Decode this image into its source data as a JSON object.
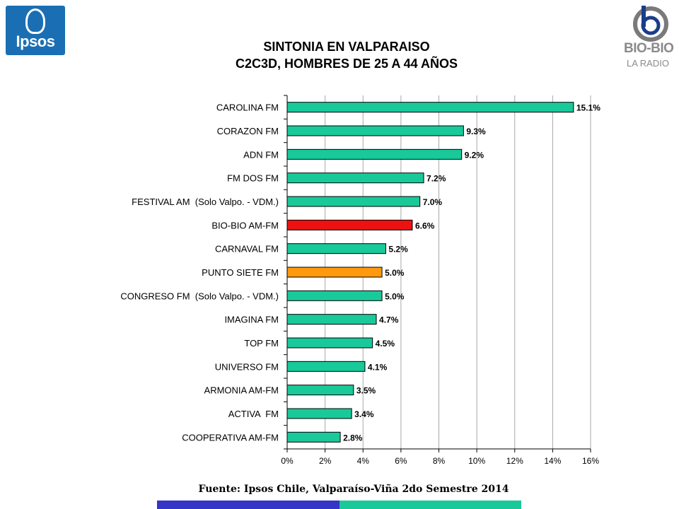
{
  "logos": {
    "left": {
      "name": "Ipsos",
      "color": "#1a6fb4"
    },
    "right": {
      "name": "BIO-BIO",
      "tagline": "LA RADIO",
      "color": "#8a8a8a"
    }
  },
  "title_line1": "SINTONIA EN VALPARAISO",
  "title_line2": "C2C3D, HOMBRES DE 25 A 44 AÑOS",
  "source": "Fuente: Ipsos Chile, Valparaíso-Viña 2do Semestre 2014",
  "footer_band_colors": [
    "#3535c8",
    "#19c999"
  ],
  "chart_data": {
    "type": "bar",
    "orientation": "horizontal",
    "categories": [
      "CAROLINA FM",
      "CORAZON FM",
      "ADN FM",
      "FM DOS FM",
      "FESTIVAL AM  (Solo Valpo. - VDM.)",
      "BIO-BIO AM-FM",
      "CARNAVAL FM",
      "PUNTO SIETE FM",
      "CONGRESO FM  (Solo Valpo. - VDM.)",
      "IMAGINA FM",
      "TOP FM",
      "UNIVERSO FM",
      "ARMONIA AM-FM",
      "ACTIVA  FM",
      "COOPERATIVA AM-FM"
    ],
    "values": [
      15.1,
      9.3,
      9.2,
      7.2,
      7.0,
      6.6,
      5.2,
      5.0,
      5.0,
      4.7,
      4.5,
      4.1,
      3.5,
      3.4,
      2.8
    ],
    "data_labels": [
      "15.1%",
      "9.3%",
      "9.2%",
      "7.2%",
      "7.0%",
      "6.6%",
      "5.2%",
      "5.0%",
      "5.0%",
      "4.7%",
      "4.5%",
      "4.1%",
      "3.5%",
      "3.4%",
      "2.8%"
    ],
    "bar_colors": [
      "#19c999",
      "#19c999",
      "#19c999",
      "#19c999",
      "#19c999",
      "#ee1111",
      "#19c999",
      "#ff9910",
      "#19c999",
      "#19c999",
      "#19c999",
      "#19c999",
      "#19c999",
      "#19c999",
      "#19c999"
    ],
    "xlim": [
      0,
      16
    ],
    "xticks": [
      0,
      2,
      4,
      6,
      8,
      10,
      12,
      14,
      16
    ],
    "xtick_labels": [
      "0%",
      "2%",
      "4%",
      "6%",
      "8%",
      "10%",
      "12%",
      "14%",
      "16%"
    ],
    "grid": true,
    "legend": "none"
  }
}
